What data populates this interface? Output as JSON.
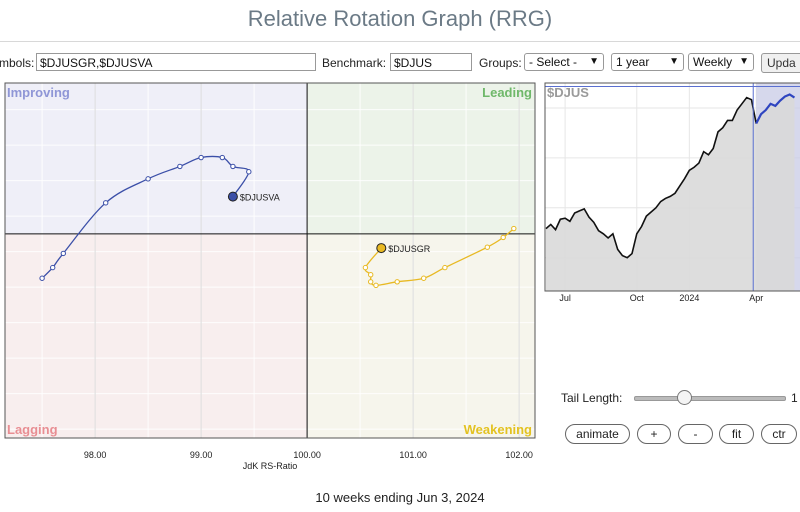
{
  "page": {
    "title": "Relative Rotation Graph (RRG)",
    "caption": "10 weeks ending Jun 3, 2024"
  },
  "toolbar": {
    "symbols_label": "mbols:",
    "symbols_value": "$DJUSGR,$DJUSVA",
    "benchmark_label": "Benchmark:",
    "benchmark_value": "$DJUS",
    "groups_label": "Groups:",
    "groups_value": "- Select -",
    "period_value": "1 year",
    "frequency_value": "Weekly",
    "update_label": "Upda"
  },
  "controls": {
    "tail_length_label": "Tail Length:",
    "tail_length_value": "1",
    "tail_length_max": 20,
    "buttons": {
      "animate": "animate",
      "plus": "+",
      "minus": "-",
      "fit": "fit",
      "center": "ctr"
    }
  },
  "colors": {
    "improving_bg": "#efeff8",
    "leading_bg": "#ecf3e9",
    "lagging_bg": "#f8eeee",
    "weakening_bg": "#f6f5ec",
    "improving_text": "#8f96d6",
    "leading_text": "#6fb86a",
    "lagging_text": "#e88e93",
    "weakening_text": "#e3c221",
    "djusva": "#3b4fa8",
    "djusgr": "#e8b923",
    "price_line": "#111111",
    "recent_line": "#2f45c0"
  },
  "chart_data": [
    {
      "type": "scatter",
      "title": "",
      "xlabel": "JdK RS-Ratio",
      "ylabel": "",
      "xlim": [
        97.15,
        102.15
      ],
      "ylim": [
        97.7,
        101.7
      ],
      "x_ticks": [
        "98.00",
        "99.00",
        "100.00",
        "101.00",
        "102.00"
      ],
      "x_tick_values": [
        98,
        99,
        100,
        101,
        102
      ],
      "quadrants": {
        "improving": "Improving",
        "leading": "Leading",
        "lagging": "Lagging",
        "weakening": "Weakening"
      },
      "center": [
        100,
        100
      ],
      "series": [
        {
          "name": "$DJUSVA",
          "points": [
            [
              97.5,
              99.5
            ],
            [
              97.6,
              99.62
            ],
            [
              97.7,
              99.78
            ],
            [
              98.1,
              100.35
            ],
            [
              98.5,
              100.62
            ],
            [
              98.8,
              100.76
            ],
            [
              99.0,
              100.86
            ],
            [
              99.2,
              100.86
            ],
            [
              99.3,
              100.76
            ],
            [
              99.45,
              100.7
            ],
            [
              99.3,
              100.42
            ]
          ]
        },
        {
          "name": "$DJUSGR",
          "points": [
            [
              101.95,
              100.06
            ],
            [
              101.85,
              99.96
            ],
            [
              101.7,
              99.85
            ],
            [
              101.3,
              99.62
            ],
            [
              101.1,
              99.5
            ],
            [
              100.85,
              99.46
            ],
            [
              100.65,
              99.42
            ],
            [
              100.6,
              99.46
            ],
            [
              100.6,
              99.54
            ],
            [
              100.55,
              99.62
            ],
            [
              100.7,
              99.84
            ]
          ]
        }
      ]
    },
    {
      "type": "line",
      "title": "$DJUS",
      "xlabel": "",
      "ylabel": "",
      "x_ticks": [
        "Jul",
        "Oct",
        "2024",
        "Apr"
      ],
      "grid": true,
      "series": [
        {
          "name": "$DJUS",
          "values": [
            60,
            64,
            59,
            69,
            70,
            67,
            75,
            77,
            79,
            71,
            66,
            58,
            55,
            51,
            55,
            40,
            34,
            32,
            36,
            55,
            62,
            72,
            76,
            80,
            86,
            89,
            91,
            94,
            101,
            108,
            116,
            119,
            123,
            134,
            131,
            137,
            153,
            157,
            164,
            164,
            174,
            180,
            186,
            184,
            161,
            170,
            174,
            180,
            178,
            183,
            187,
            189,
            186
          ]
        }
      ],
      "highlight_from_index": 44
    }
  ]
}
